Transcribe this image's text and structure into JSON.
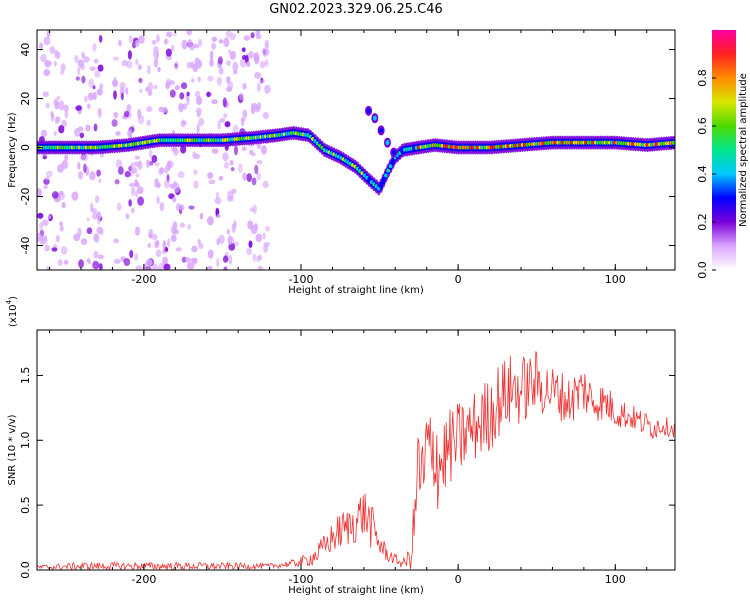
{
  "title": "GN02.2023.329.06.25.C46",
  "chart_data": [
    {
      "type": "heatmap",
      "xlabel": "Height of straight line (km)",
      "ylabel": "Frequency (Hz)",
      "xlim": [
        -268,
        138
      ],
      "ylim": [
        -50,
        48
      ],
      "xticks": [
        -200,
        -100,
        0,
        100
      ],
      "yticks": [
        -40,
        -20,
        0,
        20,
        40
      ],
      "colorbar": {
        "label": "Normalized spectral amplitude",
        "range": [
          0,
          1
        ],
        "ticks": [
          "0.0",
          "0.2",
          "0.4",
          "0.6",
          "0.8"
        ],
        "colors": [
          "#ffffff",
          "#d9a6ff",
          "#7a00d9",
          "#0000ff",
          "#00c8ff",
          "#00e68c",
          "#4cd900",
          "#d9e600",
          "#ff8c00",
          "#ff2020",
          "#ff00a0"
        ]
      },
      "ridge": {
        "x": [
          -268,
          -250,
          -230,
          -210,
          -190,
          -170,
          -150,
          -130,
          -115,
          -105,
          -95,
          -85,
          -75,
          -65,
          -57,
          -50,
          -45,
          -40,
          -35,
          -25,
          -15,
          0,
          20,
          40,
          60,
          80,
          100,
          120,
          138
        ],
        "freq": [
          0,
          0,
          0,
          1,
          3,
          3,
          3,
          4,
          5,
          6,
          5,
          -1,
          -4,
          -8,
          -13,
          -17,
          -10,
          -4,
          -1,
          0,
          1,
          0,
          0,
          1,
          2,
          2,
          2,
          1,
          2
        ]
      },
      "branch": {
        "x": [
          -57,
          -53,
          -49,
          -45,
          -41
        ],
        "freq": [
          15,
          12,
          7,
          2,
          -2
        ]
      },
      "noise_columns_x": [
        -258,
        -235,
        -210,
        -190,
        -172,
        -150,
        -130
      ]
    },
    {
      "type": "line",
      "xlabel": "Height of straight line (km)",
      "ylabel": "SNR (10 * v/v)",
      "y_multiplier": "(x10",
      "y_multiplier_exp": "4",
      "y_multiplier_close": ")",
      "xlim": [
        -268,
        138
      ],
      "ylim": [
        0,
        1.85
      ],
      "xticks": [
        -200,
        -100,
        0,
        100
      ],
      "yticks": [
        "0.0",
        "0.5",
        "1.0",
        "1.5"
      ],
      "series": [
        {
          "color": "#ee3333",
          "x": [
            -268,
            -240,
            -200,
            -160,
            -120,
            -105,
            -95,
            -90,
            -85,
            -80,
            -75,
            -70,
            -65,
            -60,
            -55,
            -50,
            -45,
            -40,
            -35,
            -30,
            -27,
            -25,
            -22,
            -20,
            -17,
            -15,
            -12,
            -10,
            -5,
            0,
            5,
            10,
            15,
            20,
            25,
            30,
            35,
            40,
            45,
            50,
            55,
            60,
            65,
            70,
            75,
            80,
            85,
            90,
            95,
            100,
            105,
            110,
            115,
            120,
            125,
            130,
            138
          ],
          "y": [
            0.02,
            0.03,
            0.03,
            0.03,
            0.03,
            0.05,
            0.08,
            0.12,
            0.18,
            0.25,
            0.3,
            0.33,
            0.38,
            0.45,
            0.33,
            0.2,
            0.12,
            0.08,
            0.05,
            0.1,
            0.5,
            0.85,
            0.6,
            1.0,
            0.75,
            1.0,
            0.8,
            0.85,
            0.95,
            1.0,
            1.05,
            1.1,
            1.15,
            1.2,
            1.3,
            1.35,
            1.4,
            1.38,
            1.42,
            1.45,
            1.4,
            1.38,
            1.35,
            1.3,
            1.35,
            1.4,
            1.3,
            1.3,
            1.28,
            1.22,
            1.2,
            1.18,
            1.15,
            1.12,
            1.1,
            1.12,
            1.08
          ],
          "noise_amplitude": [
            0.02,
            0.03,
            0.03,
            0.03,
            0.02,
            0.03,
            0.05,
            0.08,
            0.1,
            0.12,
            0.15,
            0.15,
            0.18,
            0.2,
            0.18,
            0.1,
            0.06,
            0.04,
            0.04,
            0.1,
            0.3,
            0.4,
            0.4,
            0.45,
            0.45,
            0.45,
            0.4,
            0.35,
            0.3,
            0.3,
            0.28,
            0.28,
            0.3,
            0.3,
            0.3,
            0.3,
            0.28,
            0.28,
            0.25,
            0.25,
            0.22,
            0.2,
            0.2,
            0.2,
            0.2,
            0.2,
            0.18,
            0.15,
            0.15,
            0.12,
            0.12,
            0.1,
            0.1,
            0.1,
            0.1,
            0.08,
            0.06
          ]
        }
      ]
    }
  ]
}
